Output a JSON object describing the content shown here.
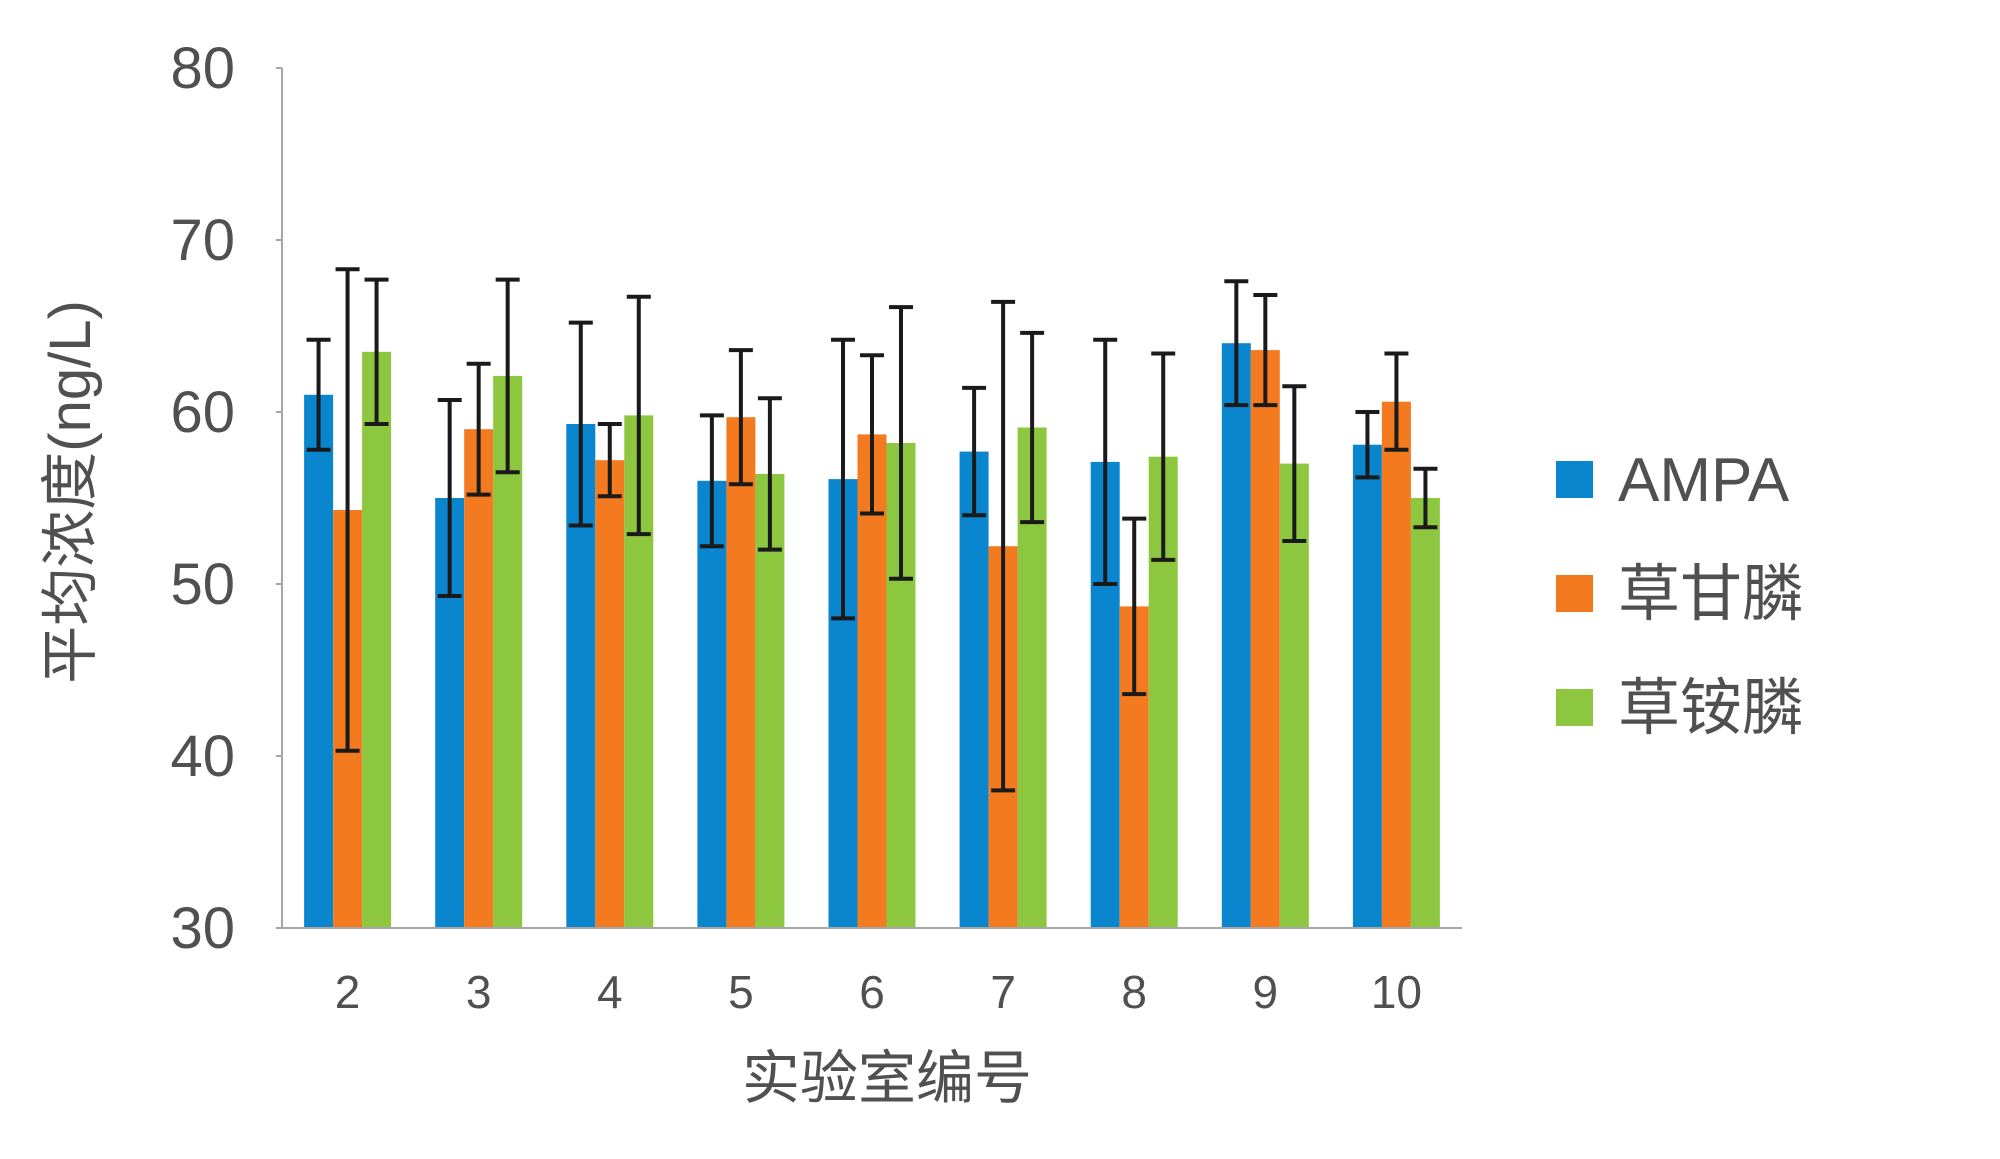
{
  "chart_data": {
    "type": "bar",
    "title": "",
    "xlabel": "实验室编号",
    "ylabel": "平均浓度(ng/L)",
    "ylim": [
      30,
      80
    ],
    "yticks": [
      30,
      40,
      50,
      60,
      70,
      80
    ],
    "grid": false,
    "legend_position": "right",
    "categories": [
      "2",
      "3",
      "4",
      "5",
      "6",
      "7",
      "8",
      "9",
      "10"
    ],
    "series": [
      {
        "name": "AMPA",
        "color": "#0a86cf",
        "values": [
          61.0,
          55.0,
          59.3,
          56.0,
          56.1,
          57.7,
          57.1,
          64.0,
          58.1
        ],
        "error": [
          3.2,
          5.7,
          5.9,
          3.8,
          8.1,
          3.7,
          7.1,
          3.6,
          1.9
        ]
      },
      {
        "name": "草甘膦",
        "color": "#f47a20",
        "values": [
          54.3,
          59.0,
          57.2,
          59.7,
          58.7,
          52.2,
          48.7,
          63.6,
          60.6
        ],
        "error": [
          14.0,
          3.8,
          2.1,
          3.9,
          4.6,
          14.2,
          5.1,
          3.2,
          2.8
        ]
      },
      {
        "name": "草铵膦",
        "color": "#8dc63f",
        "values": [
          63.5,
          62.1,
          59.8,
          56.4,
          58.2,
          59.1,
          57.4,
          57.0,
          55.0
        ],
        "error": [
          4.2,
          5.6,
          6.9,
          4.4,
          7.9,
          5.5,
          6.0,
          4.5,
          1.7
        ]
      }
    ]
  }
}
